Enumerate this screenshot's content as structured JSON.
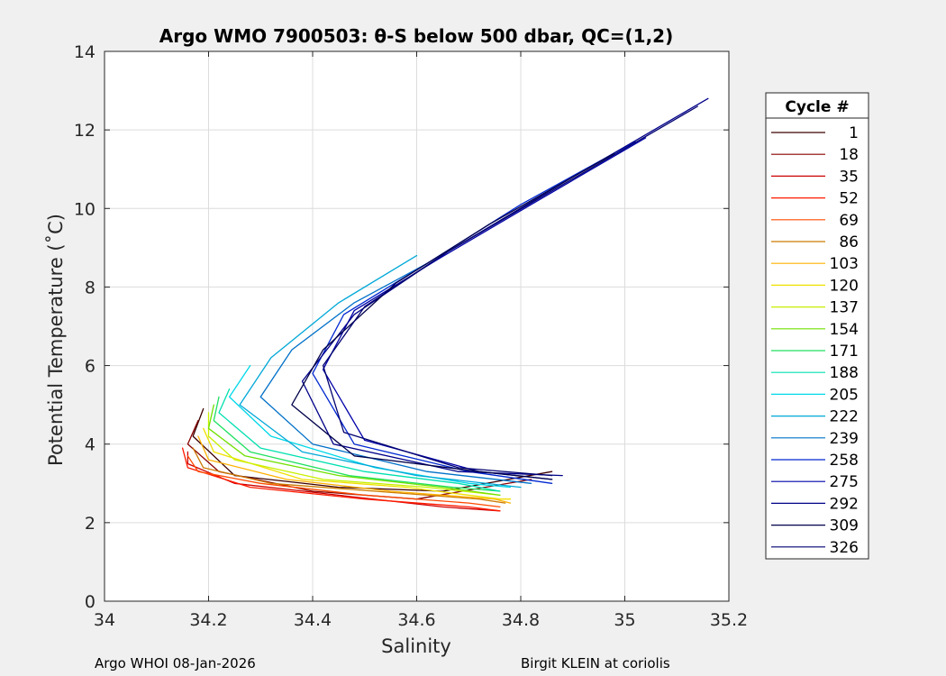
{
  "chart_data": {
    "type": "line",
    "title": "Argo WMO 7900503: θ-S below 500 dbar,  QC=(1,2)",
    "xlabel": "Salinity",
    "ylabel": "Potential Temperature (˚C)",
    "xlim": [
      34,
      35.2
    ],
    "ylim": [
      0,
      14
    ],
    "x_ticks": [
      34,
      34.2,
      34.4,
      34.6,
      34.8,
      35,
      35.2
    ],
    "x_tick_labels": [
      "34",
      "34.2",
      "34.4",
      "34.6",
      "34.8",
      "35",
      "35.2"
    ],
    "y_ticks": [
      0,
      2,
      4,
      6,
      8,
      10,
      12,
      14
    ],
    "y_tick_labels": [
      "0",
      "2",
      "4",
      "6",
      "8",
      "10",
      "12",
      "14"
    ],
    "grid": true,
    "legend": {
      "title": "Cycle #",
      "placement": "right-outside"
    },
    "series": [
      {
        "name": "1",
        "color": "#3c0000",
        "points": [
          [
            34.19,
            4.9
          ],
          [
            34.17,
            4.2
          ],
          [
            34.25,
            3.2
          ],
          [
            34.45,
            2.9
          ],
          [
            34.65,
            2.8
          ],
          [
            34.86,
            3.3
          ]
        ]
      },
      {
        "name": "18",
        "color": "#880000",
        "points": [
          [
            34.18,
            4.6
          ],
          [
            34.16,
            4.0
          ],
          [
            34.22,
            3.3
          ],
          [
            34.4,
            2.8
          ],
          [
            34.6,
            2.6
          ],
          [
            34.82,
            3.1
          ]
        ]
      },
      {
        "name": "35",
        "color": "#cc0000",
        "points": [
          [
            34.16,
            3.8
          ],
          [
            34.16,
            3.5
          ],
          [
            34.25,
            3.0
          ],
          [
            34.45,
            2.7
          ],
          [
            34.65,
            2.4
          ],
          [
            34.76,
            2.3
          ]
        ]
      },
      {
        "name": "52",
        "color": "#ff1a00",
        "points": [
          [
            34.15,
            3.9
          ],
          [
            34.16,
            3.4
          ],
          [
            34.28,
            2.9
          ],
          [
            34.5,
            2.6
          ],
          [
            34.7,
            2.4
          ],
          [
            34.76,
            2.3
          ]
        ]
      },
      {
        "name": "69",
        "color": "#ff4a00",
        "points": [
          [
            34.16,
            3.7
          ],
          [
            34.18,
            3.3
          ],
          [
            34.3,
            3.0
          ],
          [
            34.5,
            2.7
          ],
          [
            34.7,
            2.5
          ],
          [
            34.76,
            2.4
          ]
        ]
      },
      {
        "name": "86",
        "color": "#cc7a00",
        "points": [
          [
            34.17,
            3.9
          ],
          [
            34.19,
            3.4
          ],
          [
            34.32,
            3.0
          ],
          [
            34.52,
            2.8
          ],
          [
            34.72,
            2.6
          ],
          [
            34.77,
            2.5
          ]
        ]
      },
      {
        "name": "103",
        "color": "#ffb000",
        "points": [
          [
            34.18,
            4.2
          ],
          [
            34.2,
            3.6
          ],
          [
            34.35,
            3.1
          ],
          [
            34.55,
            2.8
          ],
          [
            34.75,
            2.6
          ],
          [
            34.78,
            2.5
          ]
        ]
      },
      {
        "name": "120",
        "color": "#f0e000",
        "points": [
          [
            34.19,
            4.4
          ],
          [
            34.21,
            3.8
          ],
          [
            34.38,
            3.1
          ],
          [
            34.58,
            2.9
          ],
          [
            34.76,
            2.6
          ],
          [
            34.78,
            2.6
          ]
        ]
      },
      {
        "name": "137",
        "color": "#c8f000",
        "points": [
          [
            34.2,
            4.8
          ],
          [
            34.2,
            4.2
          ],
          [
            34.25,
            3.6
          ],
          [
            34.42,
            3.1
          ],
          [
            34.62,
            2.9
          ],
          [
            34.76,
            2.7
          ]
        ]
      },
      {
        "name": "154",
        "color": "#70e000",
        "points": [
          [
            34.21,
            5.0
          ],
          [
            34.2,
            4.4
          ],
          [
            34.27,
            3.7
          ],
          [
            34.45,
            3.2
          ],
          [
            34.65,
            2.9
          ],
          [
            34.76,
            2.7
          ]
        ]
      },
      {
        "name": "171",
        "color": "#20e060",
        "points": [
          [
            34.22,
            5.2
          ],
          [
            34.21,
            4.6
          ],
          [
            34.28,
            3.8
          ],
          [
            34.47,
            3.2
          ],
          [
            34.67,
            2.9
          ],
          [
            34.76,
            2.8
          ]
        ]
      },
      {
        "name": "188",
        "color": "#00e0b0",
        "points": [
          [
            34.24,
            5.4
          ],
          [
            34.22,
            4.8
          ],
          [
            34.3,
            3.9
          ],
          [
            34.5,
            3.3
          ],
          [
            34.68,
            3.0
          ],
          [
            34.76,
            2.8
          ]
        ]
      },
      {
        "name": "205",
        "color": "#00d8e8",
        "points": [
          [
            34.28,
            6.0
          ],
          [
            34.24,
            5.2
          ],
          [
            34.32,
            4.2
          ],
          [
            34.52,
            3.4
          ],
          [
            34.7,
            3.0
          ],
          [
            34.78,
            2.9
          ]
        ]
      },
      {
        "name": "222",
        "color": "#00a8d8",
        "points": [
          [
            34.6,
            8.8
          ],
          [
            34.45,
            7.6
          ],
          [
            34.32,
            6.2
          ],
          [
            34.26,
            5.0
          ],
          [
            34.38,
            3.8
          ],
          [
            34.6,
            3.2
          ],
          [
            34.8,
            2.9
          ]
        ]
      },
      {
        "name": "239",
        "color": "#0070c8",
        "points": [
          [
            34.62,
            8.6
          ],
          [
            34.48,
            7.6
          ],
          [
            34.36,
            6.4
          ],
          [
            34.3,
            5.2
          ],
          [
            34.4,
            4.0
          ],
          [
            34.62,
            3.3
          ],
          [
            34.82,
            3.0
          ]
        ]
      },
      {
        "name": "258",
        "color": "#0028d0",
        "points": [
          [
            35.02,
            11.7
          ],
          [
            34.8,
            10.1
          ],
          [
            34.62,
            8.6
          ],
          [
            34.46,
            7.3
          ],
          [
            34.4,
            5.8
          ],
          [
            34.48,
            4.0
          ],
          [
            34.7,
            3.3
          ],
          [
            34.86,
            3.0
          ]
        ]
      },
      {
        "name": "275",
        "color": "#0000a8",
        "points": [
          [
            35.04,
            11.8
          ],
          [
            34.82,
            10.1
          ],
          [
            34.64,
            8.7
          ],
          [
            34.48,
            7.4
          ],
          [
            34.42,
            5.9
          ],
          [
            34.5,
            4.1
          ],
          [
            34.72,
            3.3
          ],
          [
            34.86,
            3.1
          ]
        ]
      },
      {
        "name": "292",
        "color": "#000088",
        "points": [
          [
            35.16,
            12.8
          ],
          [
            34.9,
            10.8
          ],
          [
            34.66,
            8.9
          ],
          [
            34.48,
            7.3
          ],
          [
            34.38,
            5.6
          ],
          [
            34.44,
            4.0
          ],
          [
            34.68,
            3.3
          ],
          [
            34.88,
            3.2
          ]
        ]
      },
      {
        "name": "309",
        "color": "#00004a",
        "points": [
          [
            34.98,
            11.4
          ],
          [
            34.74,
            9.6
          ],
          [
            34.56,
            8.1
          ],
          [
            34.42,
            6.4
          ],
          [
            34.36,
            5.0
          ],
          [
            34.48,
            3.7
          ],
          [
            34.72,
            3.3
          ],
          [
            34.86,
            3.1
          ]
        ]
      },
      {
        "name": "326",
        "color": "#000070",
        "points": [
          [
            35.14,
            12.6
          ],
          [
            34.88,
            10.6
          ],
          [
            34.66,
            8.9
          ],
          [
            34.5,
            7.5
          ],
          [
            34.42,
            6.0
          ],
          [
            34.46,
            4.3
          ],
          [
            34.68,
            3.4
          ],
          [
            34.86,
            3.2
          ]
        ]
      }
    ]
  },
  "footer": {
    "left": "Argo WHOI 08-Jan-2026",
    "right": "Birgit KLEIN at coriolis"
  }
}
